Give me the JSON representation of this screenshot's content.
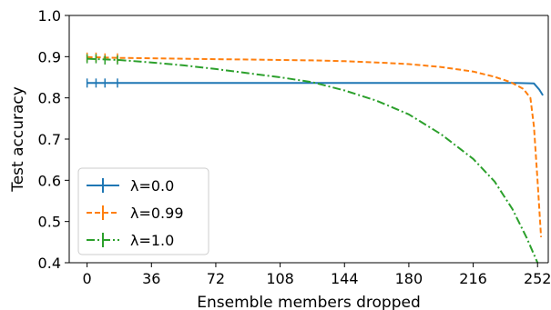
{
  "chart_data": {
    "type": "line",
    "title": "",
    "xlabel": "Ensemble members dropped",
    "ylabel": "Test accuracy",
    "xlim": [
      -10,
      258
    ],
    "ylim": [
      0.4,
      1.0
    ],
    "xticks": [
      0,
      36,
      72,
      108,
      144,
      180,
      216,
      252
    ],
    "yticks": [
      0.4,
      0.5,
      0.6,
      0.7,
      0.8,
      0.9,
      1.0
    ],
    "xtick_labels": [
      "0",
      "36",
      "72",
      "108",
      "144",
      "180",
      "216",
      "252"
    ],
    "ytick_labels": [
      "0.4",
      "0.5",
      "0.6",
      "0.7",
      "0.8",
      "0.9",
      "1.0"
    ],
    "grid": false,
    "legend_position": "lower-left",
    "series": [
      {
        "name": "λ=0.0",
        "color": "#1f77b4",
        "style": "solid",
        "points": [
          [
            0,
            0.836
          ],
          [
            36,
            0.836
          ],
          [
            72,
            0.836
          ],
          [
            108,
            0.836
          ],
          [
            144,
            0.836
          ],
          [
            180,
            0.836
          ],
          [
            216,
            0.836
          ],
          [
            240,
            0.836
          ],
          [
            250,
            0.835
          ],
          [
            253,
            0.82
          ],
          [
            255,
            0.806
          ]
        ]
      },
      {
        "name": "λ=0.99",
        "color": "#ff7f0e",
        "style": "dashed",
        "points": [
          [
            0,
            0.899
          ],
          [
            18,
            0.897
          ],
          [
            36,
            0.896
          ],
          [
            54,
            0.895
          ],
          [
            72,
            0.894
          ],
          [
            90,
            0.893
          ],
          [
            108,
            0.892
          ],
          [
            126,
            0.891
          ],
          [
            144,
            0.889
          ],
          [
            162,
            0.886
          ],
          [
            180,
            0.882
          ],
          [
            198,
            0.875
          ],
          [
            216,
            0.864
          ],
          [
            228,
            0.851
          ],
          [
            237,
            0.838
          ],
          [
            244,
            0.822
          ],
          [
            248,
            0.8
          ],
          [
            250,
            0.73
          ],
          [
            252,
            0.6
          ],
          [
            254,
            0.462
          ]
        ]
      },
      {
        "name": "λ=1.0",
        "color": "#2ca02c",
        "style": "dashdot",
        "points": [
          [
            0,
            0.895
          ],
          [
            18,
            0.892
          ],
          [
            36,
            0.886
          ],
          [
            54,
            0.879
          ],
          [
            72,
            0.87
          ],
          [
            90,
            0.86
          ],
          [
            108,
            0.85
          ],
          [
            126,
            0.838
          ],
          [
            144,
            0.818
          ],
          [
            162,
            0.793
          ],
          [
            180,
            0.76
          ],
          [
            198,
            0.712
          ],
          [
            216,
            0.652
          ],
          [
            228,
            0.597
          ],
          [
            238,
            0.53
          ],
          [
            246,
            0.46
          ],
          [
            252,
            0.4
          ]
        ]
      }
    ]
  }
}
